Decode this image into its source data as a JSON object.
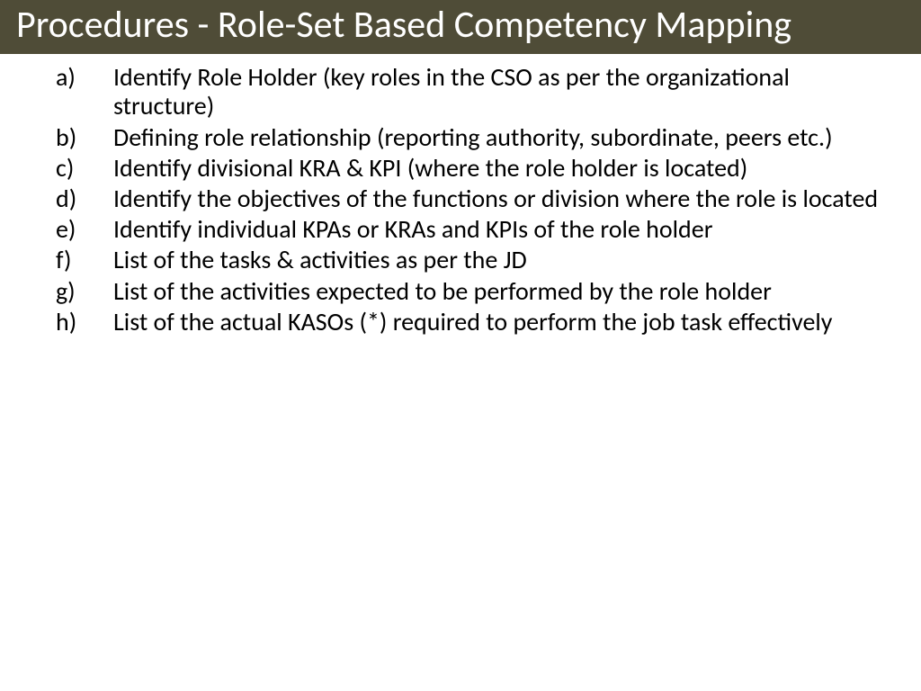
{
  "slide": {
    "title": "Procedures - Role-Set Based Competency Mapping",
    "title_bg": "#4f4c37",
    "title_color": "#ffffff",
    "title_fontsize": 42,
    "body_fontsize": 28,
    "body_color": "#000000",
    "background": "#ffffff",
    "items": [
      {
        "marker": "a)",
        "text": "Identify Role Holder (key roles in the CSO as per the organizational structure)"
      },
      {
        "marker": "b)",
        "text": "Defining role relationship (reporting authority, subordinate, peers etc.)"
      },
      {
        "marker": "c)",
        "text": "Identify divisional KRA & KPI (where the role holder is located)"
      },
      {
        "marker": "d)",
        "text": "Identify the objectives of the functions or division where the role is located"
      },
      {
        "marker": "e)",
        "text": "Identify individual KPAs or KRAs and KPIs of the role holder"
      },
      {
        "marker": "f)",
        "text": "List of the tasks & activities as per the JD"
      },
      {
        "marker": "g)",
        "text": "List of the activities expected to be performed by the role holder"
      },
      {
        "marker": "h)",
        "text": "List of the actual KASOs (*) required to perform the job task effectively"
      }
    ]
  }
}
